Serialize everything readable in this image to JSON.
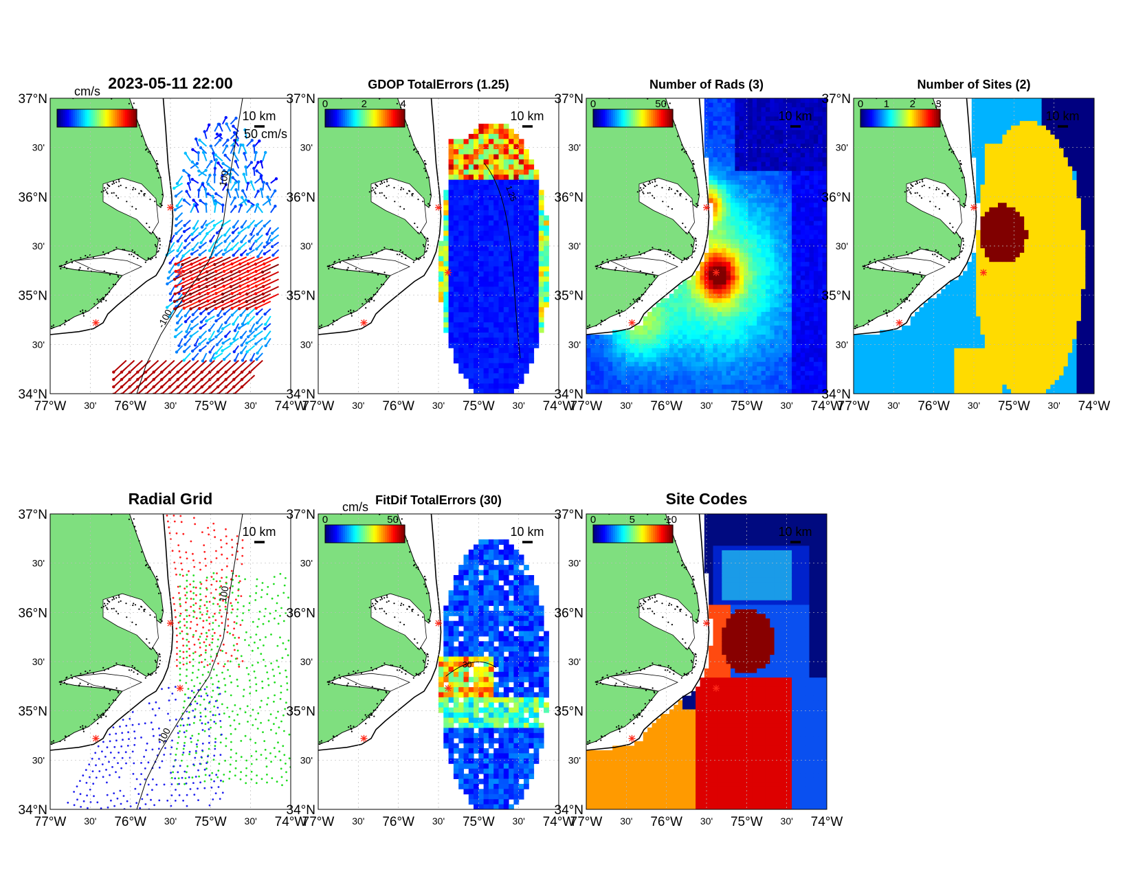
{
  "axes": {
    "lat_major": [
      "37°N",
      "36°N",
      "35°N",
      "34°N"
    ],
    "lon_major": [
      "77°W",
      "76°W",
      "75°W",
      "74°W"
    ],
    "minor_label": "30'"
  },
  "scale_label": "10 km",
  "panels": [
    {
      "id": "total-vectors",
      "title": "2023-05-11 22:00",
      "colorbar_unit": "cm/s",
      "colorbar_ticks": [],
      "vector_scale_label": "50 cm/s",
      "isobath_label": "100",
      "isobath_label_2": "-100",
      "field": "vectors"
    },
    {
      "id": "gdop",
      "title": "GDOP TotalErrors (1.25)",
      "colorbar_unit": "",
      "colorbar_ticks": [
        "0",
        "2",
        "4"
      ],
      "contour_label": "1.25",
      "field": "gdop"
    },
    {
      "id": "num-rads",
      "title": "Number of Rads (3)",
      "colorbar_unit": "",
      "colorbar_ticks": [
        "0",
        "50"
      ],
      "contour_label": "3",
      "field": "rads"
    },
    {
      "id": "num-sites",
      "title": "Number of Sites (2)",
      "colorbar_unit": "",
      "colorbar_ticks": [
        "0",
        "1",
        "2",
        "3"
      ],
      "contour_label": "2",
      "field": "sites"
    },
    {
      "id": "radial-grid",
      "title": "Radial Grid",
      "field": "radial",
      "isobath_label": "100",
      "isobath_label_2": "100"
    },
    {
      "id": "fitdif",
      "title": "FitDif TotalErrors (30)",
      "colorbar_unit": "cm/s",
      "colorbar_ticks": [
        "0",
        "50"
      ],
      "contour_label": "30",
      "field": "fitdif"
    },
    {
      "id": "site-codes",
      "title": "Site Codes",
      "colorbar_unit": "",
      "colorbar_ticks": [
        "0",
        "5",
        "10"
      ],
      "field": "codes"
    }
  ],
  "colors": {
    "land": "#7fdf7f",
    "coast": "#000000",
    "site_marker": "#ff2a1a",
    "grid": "#bbbbbb",
    "radial_sites": [
      "#ff2020",
      "#20dd20",
      "#2020ee"
    ],
    "site_codes": [
      "#000a80",
      "#0022cc",
      "#1a9be8",
      "#0a50f0",
      "#ff4a10",
      "#880000",
      "#dd0000",
      "#ff9a00"
    ]
  }
}
